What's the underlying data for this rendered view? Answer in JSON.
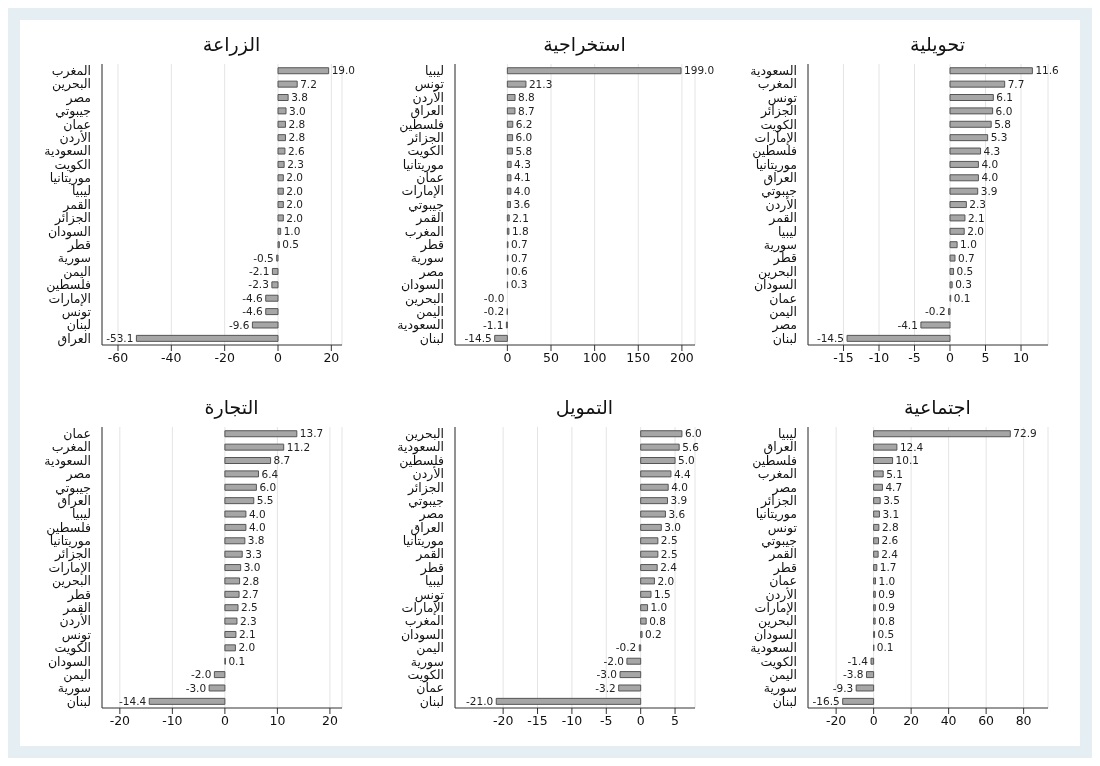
{
  "chart_data": [
    {
      "type": "bar",
      "orientation": "horizontal",
      "title": "الزراعة",
      "color": "#a6a6a6",
      "grid": "x",
      "xlim": [
        -66,
        24
      ],
      "xticks": [
        -60,
        -40,
        -20,
        0,
        20
      ],
      "categories": [
        "المغرب",
        "البحرين",
        "مصر",
        "جيبوتي",
        "عمان",
        "الأردن",
        "السعودية",
        "الكويت",
        "موريتانيا",
        "ليبيا",
        "القمر",
        "الجزائر",
        "السودان",
        "قطر",
        "سورية",
        "اليمن",
        "فلسطين",
        "الإمارات",
        "تونس",
        "لبنان",
        "العراق"
      ],
      "values": [
        19.0,
        7.2,
        3.8,
        3.0,
        2.8,
        2.8,
        2.6,
        2.3,
        2.0,
        2.0,
        2.0,
        2.0,
        1.0,
        0.5,
        -0.5,
        -2.1,
        -2.3,
        -4.6,
        -4.6,
        -9.6,
        -53.1
      ],
      "value_labels": [
        "19.0",
        "7.2",
        "3.8",
        "3.0",
        "2.8",
        "2.8",
        "2.6",
        "2.3",
        "2.0",
        "2.0",
        "2.0",
        "2.0",
        "1.0",
        "0.5",
        "-0.5",
        "-2.1",
        "-2.3",
        "-4.6",
        "-4.6",
        "-9.6",
        "-53.1"
      ]
    },
    {
      "type": "bar",
      "orientation": "horizontal",
      "title": "استخراجية",
      "color": "#a6a6a6",
      "grid": "x",
      "xlim": [
        -60,
        215
      ],
      "xticks": [
        0,
        50,
        100,
        150,
        200
      ],
      "categories": [
        "ليبيا",
        "تونس",
        "الأردن",
        "العراق",
        "فلسطين",
        "الجزائر",
        "الكويت",
        "موريتانيا",
        "عمان",
        "الإمارات",
        "جيبوتي",
        "القمر",
        "المغرب",
        "قطر",
        "سورية",
        "مصر",
        "السودان",
        "البحرين",
        "اليمن",
        "السعودية",
        "لبنان"
      ],
      "values": [
        199.0,
        21.3,
        8.8,
        8.7,
        6.2,
        6.0,
        5.8,
        4.3,
        4.1,
        4.0,
        3.6,
        2.1,
        1.8,
        0.7,
        0.7,
        0.6,
        0.3,
        -0.0,
        -0.2,
        -1.1,
        -14.5
      ],
      "value_labels": [
        "199.0",
        "21.3",
        "8.8",
        "8.7",
        "6.2",
        "6.0",
        "5.8",
        "4.3",
        "4.1",
        "4.0",
        "3.6",
        "2.1",
        "1.8",
        "0.7",
        "0.7",
        "0.6",
        "0.3",
        "-0.0",
        "-0.2",
        "-1.1",
        "-14.5"
      ]
    },
    {
      "type": "bar",
      "orientation": "horizontal",
      "title": "تحويلية",
      "color": "#a6a6a6",
      "grid": "x",
      "xlim": [
        -20,
        13.8
      ],
      "xticks": [
        -15,
        -10,
        -5,
        0,
        5,
        10
      ],
      "categories": [
        "السعودية",
        "المغرب",
        "تونس",
        "الجزائر",
        "الكويت",
        "الإمارات",
        "فلسطين",
        "موريتانيا",
        "العراق",
        "جيبوتي",
        "الأردن",
        "القمر",
        "ليبيا",
        "سورية",
        "قطر",
        "البحرين",
        "السودان",
        "عمان",
        "اليمن",
        "مصر",
        "لبنان"
      ],
      "values": [
        11.6,
        7.7,
        6.1,
        6.0,
        5.8,
        5.3,
        4.3,
        4.0,
        4.0,
        3.9,
        2.3,
        2.1,
        2.0,
        1.0,
        0.7,
        0.5,
        0.3,
        0.1,
        -0.2,
        -4.1,
        -14.5
      ],
      "value_labels": [
        "11.6",
        "7.7",
        "6.1",
        "6.0",
        "5.8",
        "5.3",
        "4.3",
        "4.0",
        "4.0",
        "3.9",
        "2.3",
        "2.1",
        "2.0",
        "1.0",
        "0.7",
        "0.5",
        "0.3",
        "0.1",
        "-0.2",
        "-4.1",
        "-14.5"
      ]
    },
    {
      "type": "bar",
      "orientation": "horizontal",
      "title": "التجارة",
      "color": "#a6a6a6",
      "grid": "x",
      "xlim": [
        -23.4,
        22.3
      ],
      "xticks": [
        -20,
        -10,
        0,
        10,
        20
      ],
      "categories": [
        "عمان",
        "المغرب",
        "السعودية",
        "مصر",
        "جيبوتي",
        "العراق",
        "ليبيا",
        "فلسطين",
        "موريتانيا",
        "الجزائر",
        "الإمارات",
        "البحرين",
        "قطر",
        "القمر",
        "الأردن",
        "تونس",
        "الكويت",
        "السودان",
        "اليمن",
        "سورية",
        "لبنان"
      ],
      "values": [
        13.7,
        11.2,
        8.7,
        6.4,
        6.0,
        5.5,
        4.0,
        4.0,
        3.8,
        3.3,
        3.0,
        2.8,
        2.7,
        2.5,
        2.3,
        2.1,
        2.0,
        0.1,
        -2.0,
        -3.0,
        -14.4
      ],
      "value_labels": [
        "13.7",
        "11.2",
        "8.7",
        "6.4",
        "6.0",
        "5.5",
        "4.0",
        "4.0",
        "3.8",
        "3.3",
        "3.0",
        "2.8",
        "2.7",
        "2.5",
        "2.3",
        "2.1",
        "2.0",
        "0.1",
        "-2.0",
        "-3.0",
        "-14.4"
      ]
    },
    {
      "type": "bar",
      "orientation": "horizontal",
      "title": "التمويل",
      "color": "#a6a6a6",
      "grid": "x",
      "xlim": [
        -27,
        7.9
      ],
      "xticks": [
        -20,
        -15,
        -10,
        -5,
        0,
        5
      ],
      "categories": [
        "البحرين",
        "السعودية",
        "فلسطين",
        "الأردن",
        "الجزائر",
        "جيبوتي",
        "مصر",
        "العراق",
        "موريتانيا",
        "القمر",
        "قطر",
        "ليبيا",
        "تونس",
        "الإمارات",
        "المغرب",
        "السودان",
        "اليمن",
        "سورية",
        "الكويت",
        "عمان",
        "لبنان"
      ],
      "values": [
        6.0,
        5.6,
        5.0,
        4.4,
        4.0,
        3.9,
        3.6,
        3.0,
        2.5,
        2.5,
        2.4,
        2.0,
        1.5,
        1.0,
        0.8,
        0.2,
        -0.2,
        -2.0,
        -3.0,
        -3.2,
        -21.0
      ],
      "value_labels": [
        "6.0",
        "5.6",
        "5.0",
        "4.4",
        "4.0",
        "3.9",
        "3.6",
        "3.0",
        "2.5",
        "2.5",
        "2.4",
        "2.0",
        "1.5",
        "1.0",
        "0.8",
        "0.2",
        "-0.2",
        "-2.0",
        "-3.0",
        "-3.2",
        "-21.0"
      ]
    },
    {
      "type": "bar",
      "orientation": "horizontal",
      "title": "اجتماعية",
      "color": "#a6a6a6",
      "grid": "x",
      "xlim": [
        -35,
        93
      ],
      "xticks": [
        -20,
        0,
        20,
        40,
        60,
        80
      ],
      "categories": [
        "ليبيا",
        "العراق",
        "فلسطين",
        "المغرب",
        "مصر",
        "الجزائر",
        "موريتانيا",
        "تونس",
        "جيبوتي",
        "القمر",
        "قطر",
        "عمان",
        "الأردن",
        "الإمارات",
        "البحرين",
        "السودان",
        "السعودية",
        "الكويت",
        "اليمن",
        "سورية",
        "لبنان"
      ],
      "values": [
        72.9,
        12.4,
        10.1,
        5.1,
        4.7,
        3.5,
        3.1,
        2.8,
        2.6,
        2.4,
        1.7,
        1.0,
        0.9,
        0.9,
        0.8,
        0.5,
        0.1,
        -1.4,
        -3.8,
        -9.3,
        -16.5
      ],
      "value_labels": [
        "72.9",
        "12.4",
        "10.1",
        "5.1",
        "4.7",
        "3.5",
        "3.1",
        "2.8",
        "2.6",
        "2.4",
        "1.7",
        "1.0",
        "0.9",
        "0.9",
        "0.8",
        "0.5",
        "0.1",
        "-1.4",
        "-3.8",
        "-9.3",
        "-16.5"
      ]
    }
  ]
}
